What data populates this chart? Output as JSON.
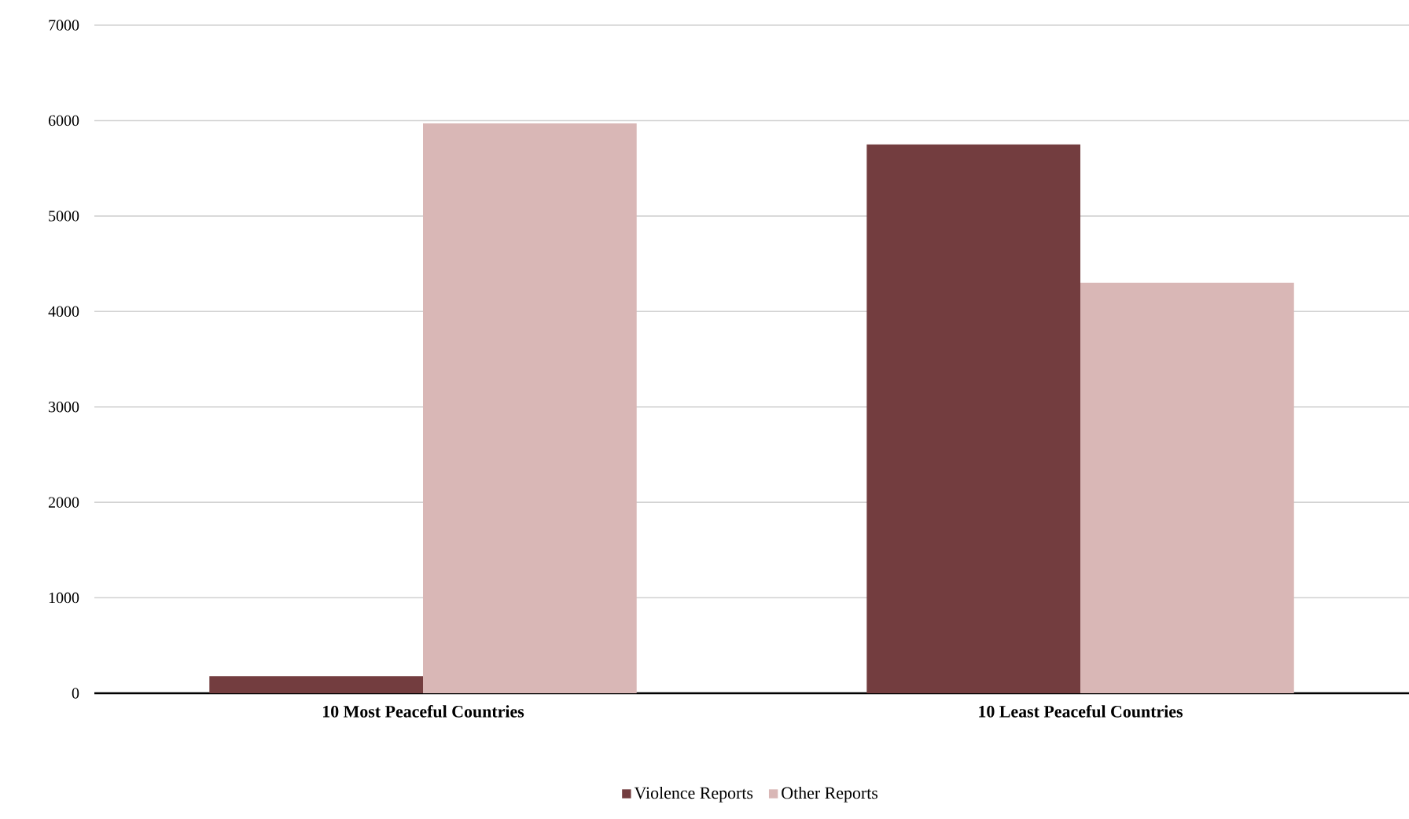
{
  "chart_data": {
    "type": "bar",
    "categories": [
      "10 Most Peaceful Countries",
      "10 Least Peaceful Countries"
    ],
    "series": [
      {
        "name": "Violence Reports",
        "color": "#733d3f",
        "values": [
          180,
          5750
        ]
      },
      {
        "name": "Other Reports",
        "color": "#d9b7b6",
        "values": [
          5970,
          4300
        ]
      }
    ],
    "ylim": [
      0,
      7000
    ],
    "yticks": [
      0,
      1000,
      2000,
      3000,
      4000,
      5000,
      6000,
      7000
    ],
    "grid": "y",
    "legend": "bottom"
  }
}
